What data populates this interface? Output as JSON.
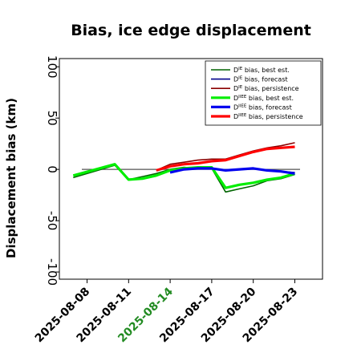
{
  "chart_data": {
    "type": "line",
    "title": "Bias, ice edge displacement",
    "ylabel": "Displacement bias (km)",
    "xlabel": "",
    "ylim": [
      -107,
      108
    ],
    "xlim": [
      "2025-08-06",
      "2025-08-25"
    ],
    "yticks": [
      100,
      50,
      0,
      -50,
      -100
    ],
    "xticks": [
      "2025-08-08",
      "2025-08-11",
      "2025-08-14",
      "2025-08-17",
      "2025-08-20",
      "2025-08-23"
    ],
    "highlight_xtick": "2025-08-14",
    "highlight_color": "#228b22",
    "grid": false,
    "zero_line": true,
    "legend_position": "top-right",
    "series": [
      {
        "name": "D",
        "sup": "IE",
        "suffix": " bias, best est.",
        "color": "#006400",
        "width": 1.6,
        "points": [
          [
            "2025-08-07",
            -8
          ],
          [
            "2025-08-10",
            4
          ],
          [
            "2025-08-11",
            -10
          ],
          [
            "2025-08-12",
            -7
          ],
          [
            "2025-08-13",
            -4
          ],
          [
            "2025-08-14",
            0
          ],
          [
            "2025-08-15",
            2
          ],
          [
            "2025-08-16",
            1
          ],
          [
            "2025-08-17",
            1
          ],
          [
            "2025-08-18",
            -22
          ],
          [
            "2025-08-19",
            -19
          ],
          [
            "2025-08-20",
            -16
          ],
          [
            "2025-08-21",
            -11
          ],
          [
            "2025-08-22",
            -9
          ],
          [
            "2025-08-23",
            -5
          ]
        ]
      },
      {
        "name": "D",
        "sup": "IE",
        "suffix": " bias, forecast",
        "color": "#00008b",
        "width": 1.6,
        "points": [
          [
            "2025-08-14",
            -3
          ],
          [
            "2025-08-15",
            0
          ],
          [
            "2025-08-16",
            1
          ],
          [
            "2025-08-17",
            1
          ],
          [
            "2025-08-18",
            -1
          ],
          [
            "2025-08-19",
            0
          ],
          [
            "2025-08-20",
            1
          ],
          [
            "2025-08-21",
            -1
          ],
          [
            "2025-08-22",
            -2
          ],
          [
            "2025-08-23",
            -3
          ]
        ]
      },
      {
        "name": "D",
        "sup": "IE",
        "suffix": " bias, persistence",
        "color": "#8b0000",
        "width": 1.6,
        "points": [
          [
            "2025-08-13",
            -1
          ],
          [
            "2025-08-14",
            5
          ],
          [
            "2025-08-15",
            7
          ],
          [
            "2025-08-16",
            9
          ],
          [
            "2025-08-17",
            10
          ],
          [
            "2025-08-18",
            10
          ],
          [
            "2025-08-19",
            14
          ],
          [
            "2025-08-20",
            18
          ],
          [
            "2025-08-21",
            21
          ],
          [
            "2025-08-22",
            23
          ],
          [
            "2025-08-23",
            26
          ]
        ]
      },
      {
        "name": "D",
        "sup": "IIEE",
        "suffix": " bias, best est.",
        "color": "#00ee00",
        "width": 3.2,
        "points": [
          [
            "2025-08-07",
            -6
          ],
          [
            "2025-08-10",
            5
          ],
          [
            "2025-08-11",
            -10
          ],
          [
            "2025-08-12",
            -9
          ],
          [
            "2025-08-13",
            -6
          ],
          [
            "2025-08-14",
            -1
          ],
          [
            "2025-08-15",
            1
          ],
          [
            "2025-08-16",
            2
          ],
          [
            "2025-08-17",
            2
          ],
          [
            "2025-08-18",
            -18
          ],
          [
            "2025-08-19",
            -15
          ],
          [
            "2025-08-20",
            -13
          ],
          [
            "2025-08-21",
            -10
          ],
          [
            "2025-08-22",
            -8
          ],
          [
            "2025-08-23",
            -4
          ]
        ]
      },
      {
        "name": "D",
        "sup": "IIEE",
        "suffix": " bias, forecast",
        "color": "#0000ee",
        "width": 3.2,
        "points": [
          [
            "2025-08-14",
            -3
          ],
          [
            "2025-08-15",
            0
          ],
          [
            "2025-08-16",
            1
          ],
          [
            "2025-08-17",
            1
          ],
          [
            "2025-08-18",
            -1
          ],
          [
            "2025-08-19",
            0
          ],
          [
            "2025-08-20",
            1
          ],
          [
            "2025-08-21",
            -1
          ],
          [
            "2025-08-22",
            -2
          ],
          [
            "2025-08-23",
            -4
          ]
        ]
      },
      {
        "name": "D",
        "sup": "IIEE",
        "suffix": " bias, persistence",
        "color": "#ff0000",
        "width": 3.2,
        "points": [
          [
            "2025-08-13",
            -1
          ],
          [
            "2025-08-14",
            3
          ],
          [
            "2025-08-15",
            5
          ],
          [
            "2025-08-16",
            6
          ],
          [
            "2025-08-17",
            8
          ],
          [
            "2025-08-18",
            9
          ],
          [
            "2025-08-19",
            13
          ],
          [
            "2025-08-20",
            17
          ],
          [
            "2025-08-21",
            20
          ],
          [
            "2025-08-22",
            21
          ],
          [
            "2025-08-23",
            22
          ]
        ]
      }
    ]
  }
}
